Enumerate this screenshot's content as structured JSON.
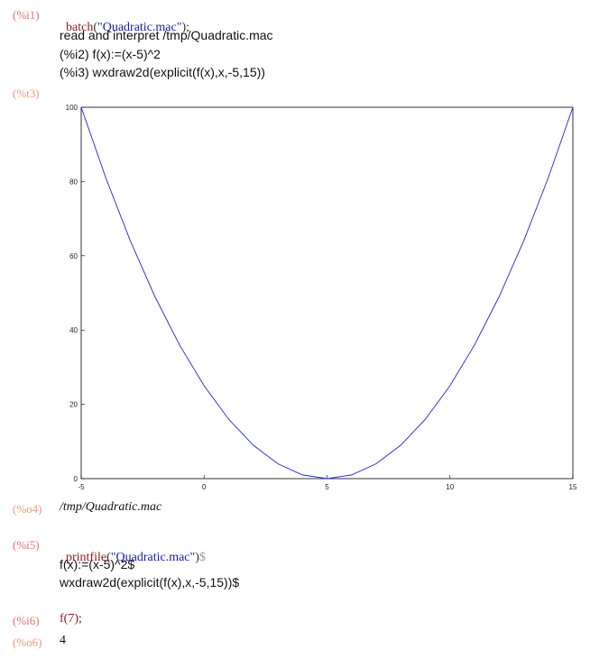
{
  "cells": {
    "i1": {
      "label": "(%i1)",
      "fn": "batch",
      "open": "(",
      "str": "\"Quadratic.mac\"",
      "close": ");"
    },
    "out1": [
      "read and interpret /tmp/Quadratic.mac",
      "(%i2) f(x):=(x-5)^2",
      "(%i3) wxdraw2d(explicit(f(x),x,-5,15))"
    ],
    "t3": {
      "label": "(%t3)"
    },
    "o4": {
      "label": "(%o4)",
      "value": "/tmp/Quadratic.mac"
    },
    "i5": {
      "label": "(%i5)",
      "fn": "printfile",
      "open": "(",
      "str": "\"Quadratic.mac\"",
      "close": ")",
      "suffix": "$"
    },
    "out5": [
      "f(x):=(x-5)^2$",
      "wxdraw2d(explicit(f(x),x,-5,15))$"
    ],
    "i6": {
      "label": "(%i6)",
      "input": "f(7);"
    },
    "o6": {
      "label": "(%o6)",
      "value": "4"
    }
  },
  "chart_data": {
    "type": "line",
    "title": "",
    "xlabel": "",
    "ylabel": "",
    "xlim": [
      -5,
      15
    ],
    "ylim": [
      0,
      100
    ],
    "x_ticks": [
      -5,
      0,
      5,
      10,
      15
    ],
    "y_ticks": [
      0,
      20,
      40,
      60,
      80,
      100
    ],
    "series": [
      {
        "expression": "f(x)=(x-5)^2",
        "color": "#2222dd",
        "x": [
          -5,
          -4,
          -3,
          -2,
          -1,
          0,
          1,
          2,
          3,
          4,
          5,
          6,
          7,
          8,
          9,
          10,
          11,
          12,
          13,
          14,
          15
        ],
        "y": [
          100,
          81,
          64,
          49,
          36,
          25,
          16,
          9,
          4,
          1,
          0,
          1,
          4,
          9,
          16,
          25,
          36,
          49,
          64,
          81,
          100
        ]
      }
    ]
  }
}
